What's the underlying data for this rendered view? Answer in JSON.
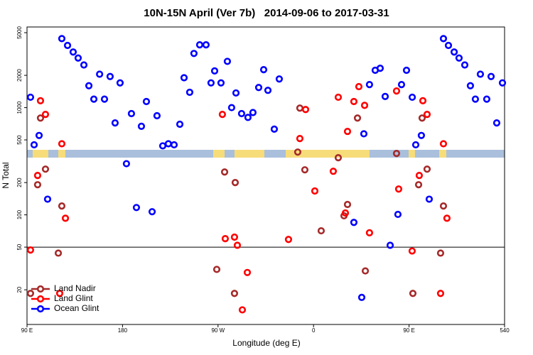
{
  "chart_data": {
    "type": "scatter",
    "title": "10N-15N April (Ver 7b)   2014-09-06 to 2017-03-31",
    "x_label": "Longitude (deg E)",
    "y_label": "N Total",
    "log_y": true,
    "legend": "bottom-left",
    "hline": 50,
    "xlim": [
      90,
      540
    ],
    "ylim": [
      9.5,
      5650
    ],
    "xticks": [
      {
        "value": 90,
        "label": "90 E"
      },
      180,
      {
        "value": 270,
        "label": "90 W"
      },
      {
        "value": 360,
        "label": "0"
      },
      {
        "value": 450,
        "label": "90 E"
      },
      540
    ],
    "yticks": [
      20,
      50,
      100,
      200,
      500,
      1000,
      2000,
      5000
    ],
    "series": [
      {
        "name": "Land Nadir",
        "color": "#a52a2a",
        "x": [
          93.3,
          100,
          102.7,
          107.4,
          119.5,
          122.8,
          268.8,
          276.2,
          286.2,
          285.5,
          345.1,
          347.1,
          351.8,
          367.2,
          388.7,
          392,
          383.3,
          401.4,
          408.8,
          438.2,
          453.6,
          459,
          462.3,
          467,
          479.7,
          482.4
        ],
        "values": [
          18.5,
          191,
          800,
          267,
          44,
          121,
          31,
          251,
          200,
          18.5,
          385,
          990,
          263,
          71,
          98,
          125,
          341,
          800,
          30,
          374,
          18.5,
          191,
          800,
          267,
          44,
          121
        ]
      },
      {
        "name": "Land Glint",
        "color": "#ff0000",
        "x": [
          93.3,
          100,
          102.7,
          107.4,
          122.8,
          126.2,
          120.8,
          274.1,
          276.8,
          285.5,
          288.2,
          292.9,
          297.6,
          336.4,
          347.1,
          352.5,
          361.2,
          378.6,
          383.3,
          392,
          390,
          398,
          402.7,
          408.1,
          412.7,
          438.2,
          440.2,
          452.9,
          459.6,
          463,
          467,
          482.4,
          485.7,
          479.7
        ],
        "values": [
          47,
          233,
          1160,
          865,
          460,
          93,
          18.5,
          865,
          60,
          62,
          52,
          13,
          29,
          59,
          515,
          960,
          167,
          255,
          1250,
          600,
          104,
          1140,
          1570,
          1050,
          68,
          1430,
          174,
          46,
          233,
          1160,
          865,
          460,
          93,
          18.5
        ]
      },
      {
        "name": "Ocean Glint",
        "color": "#0000ff",
        "x": [
          93.3,
          96.7,
          101.4,
          109.4,
          122.8,
          128.2,
          133.5,
          138.2,
          143.6,
          148.3,
          153,
          158.4,
          163,
          168.3,
          173,
          177.7,
          183.7,
          188.4,
          193.1,
          197.8,
          202.5,
          207.9,
          212.5,
          217.9,
          223.2,
          228.6,
          234,
          238,
          243.3,
          247.3,
          252.7,
          258.7,
          263.4,
          266.8,
          272.8,
          278.8,
          282.8,
          286.9,
          292.2,
          298.2,
          302.9,
          308.3,
          313,
          317,
          323,
          327.7,
          398,
          405.4,
          407.4,
          412.7,
          418.1,
          422.8,
          427.5,
          432.2,
          439.5,
          442.9,
          447.6,
          453,
          456.3,
          461.6,
          469,
          482.4,
          487.1,
          492.5,
          497.1,
          502.5,
          507.8,
          512.5,
          517.2,
          523.2,
          527.3,
          532.6,
          538
        ],
        "values": [
          1250,
          450,
          550,
          140,
          4400,
          3800,
          3300,
          2900,
          2500,
          1600,
          1200,
          2050,
          1200,
          1950,
          720,
          1700,
          300,
          880,
          117,
          670,
          1140,
          107,
          840,
          440,
          460,
          450,
          700,
          1900,
          1390,
          3200,
          3850,
          3850,
          1700,
          2200,
          1700,
          2700,
          1000,
          1370,
          880,
          810,
          900,
          1540,
          2260,
          1450,
          630,
          1850,
          85,
          17,
          570,
          1640,
          2230,
          2330,
          1270,
          52,
          101,
          1640,
          2230,
          1250,
          450,
          550,
          140,
          4400,
          3800,
          3300,
          2900,
          2500,
          1600,
          1200,
          2050,
          1200,
          1950,
          720,
          1700
        ]
      }
    ]
  }
}
